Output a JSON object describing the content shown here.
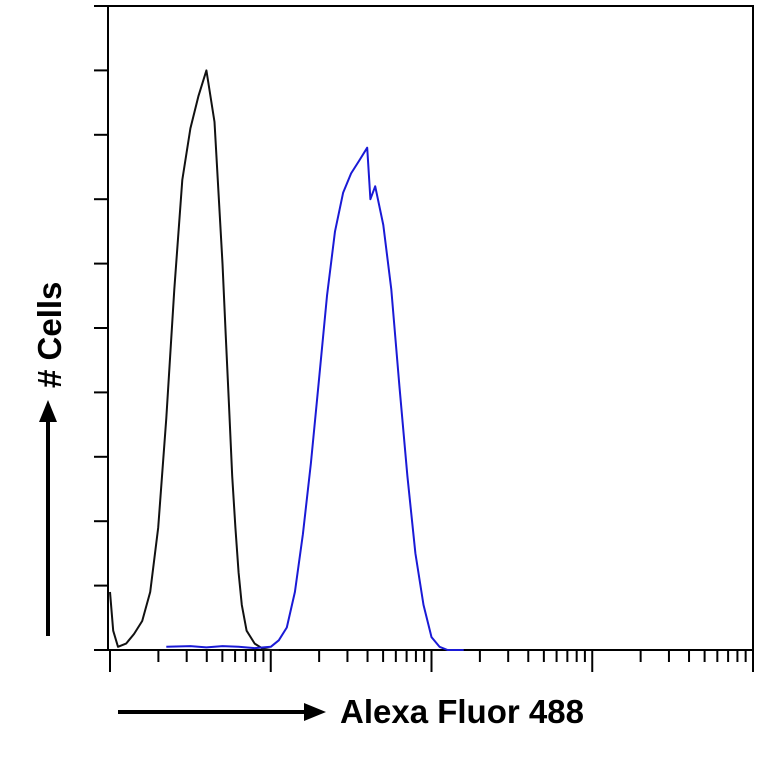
{
  "chart_data": {
    "type": "line",
    "title": "",
    "xlabel": "Alexa Fluor 488",
    "ylabel": "# Cells",
    "x_scale": "log",
    "x_decades": [
      0,
      4
    ],
    "ylim": [
      0,
      10
    ],
    "y_ticks": [
      0,
      1,
      2,
      3,
      4,
      5,
      6,
      7,
      8,
      9,
      10
    ],
    "grid": false,
    "legend": "none",
    "colors": {
      "control": "#111111",
      "sample": "#1a1ad6",
      "axis": "#000000"
    },
    "series": [
      {
        "color": "#111111",
        "x": [
          0.0,
          0.02,
          0.05,
          0.1,
          0.15,
          0.2,
          0.25,
          0.3,
          0.35,
          0.4,
          0.45,
          0.5,
          0.55,
          0.6,
          0.65,
          0.7,
          0.72,
          0.74,
          0.76,
          0.78,
          0.8,
          0.82,
          0.85,
          0.9,
          0.95,
          1.0,
          1.05
        ],
        "y": [
          0.9,
          0.3,
          0.05,
          0.1,
          0.25,
          0.45,
          0.9,
          1.9,
          3.6,
          5.6,
          7.3,
          8.1,
          8.6,
          9.0,
          8.2,
          6.0,
          4.9,
          3.8,
          2.7,
          1.9,
          1.2,
          0.7,
          0.3,
          0.1,
          0.02,
          0.0,
          0.0
        ]
      },
      {
        "color": "#1a1ad6",
        "x": [
          0.35,
          0.5,
          0.6,
          0.7,
          0.8,
          0.9,
          1.0,
          1.05,
          1.1,
          1.15,
          1.2,
          1.25,
          1.3,
          1.35,
          1.4,
          1.45,
          1.5,
          1.55,
          1.6,
          1.62,
          1.65,
          1.7,
          1.75,
          1.8,
          1.85,
          1.9,
          1.95,
          2.0,
          2.05,
          2.1,
          2.2
        ],
        "y": [
          0.05,
          0.06,
          0.04,
          0.06,
          0.05,
          0.03,
          0.05,
          0.15,
          0.35,
          0.9,
          1.8,
          2.9,
          4.2,
          5.5,
          6.5,
          7.1,
          7.4,
          7.6,
          7.8,
          7.0,
          7.2,
          6.6,
          5.6,
          4.1,
          2.7,
          1.5,
          0.7,
          0.2,
          0.05,
          0.0,
          0.0
        ]
      }
    ]
  }
}
